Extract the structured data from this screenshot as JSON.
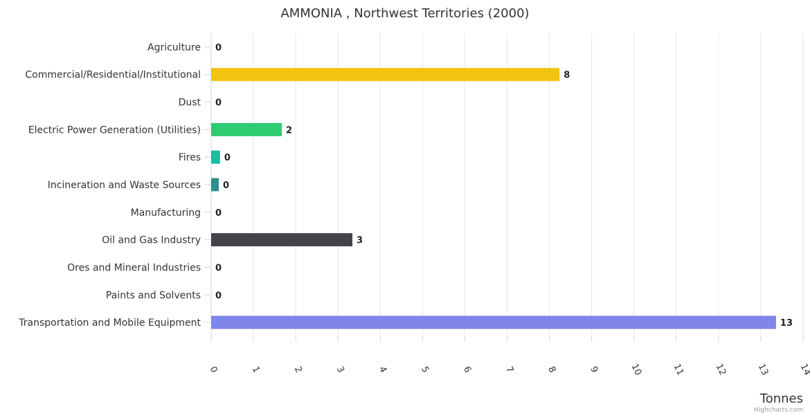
{
  "chart_data": {
    "type": "bar",
    "orientation": "horizontal",
    "title": "AMMONIA , Northwest Territories (2000)",
    "xlabel": "",
    "ylabel": "Tonnes",
    "ylim": [
      0,
      14
    ],
    "ticks": [
      "0",
      "1",
      "2",
      "3",
      "4",
      "5",
      "6",
      "7",
      "8",
      "9",
      "10",
      "11",
      "12",
      "13",
      "14"
    ],
    "grid": true,
    "categories": [
      "Agriculture",
      "Commercial/Residential/Institutional",
      "Dust",
      "Electric Power Generation (Utilities)",
      "Fires",
      "Incineration and Waste Sources",
      "Manufacturing",
      "Oil and Gas Industry",
      "Ores and Mineral Industries",
      "Paints and Solvents",
      "Transportation and Mobile Equipment"
    ],
    "values": [
      0,
      8.24,
      0,
      1.67,
      0.21,
      0.18,
      0,
      3.34,
      0,
      0,
      13.36
    ],
    "labels": [
      "0",
      "8",
      "0",
      "2",
      "0",
      "0",
      "0",
      "3",
      "0",
      "0",
      "13"
    ],
    "colors": [
      "#7cb5ec",
      "#f1c40f",
      "#90ed7d",
      "#2ecc71",
      "#1abc9c",
      "#2f8f8a",
      "#8085e9",
      "#434348",
      "#f7a35c",
      "#e4d354",
      "#8085e9"
    ],
    "credit": "Highcharts.com"
  }
}
